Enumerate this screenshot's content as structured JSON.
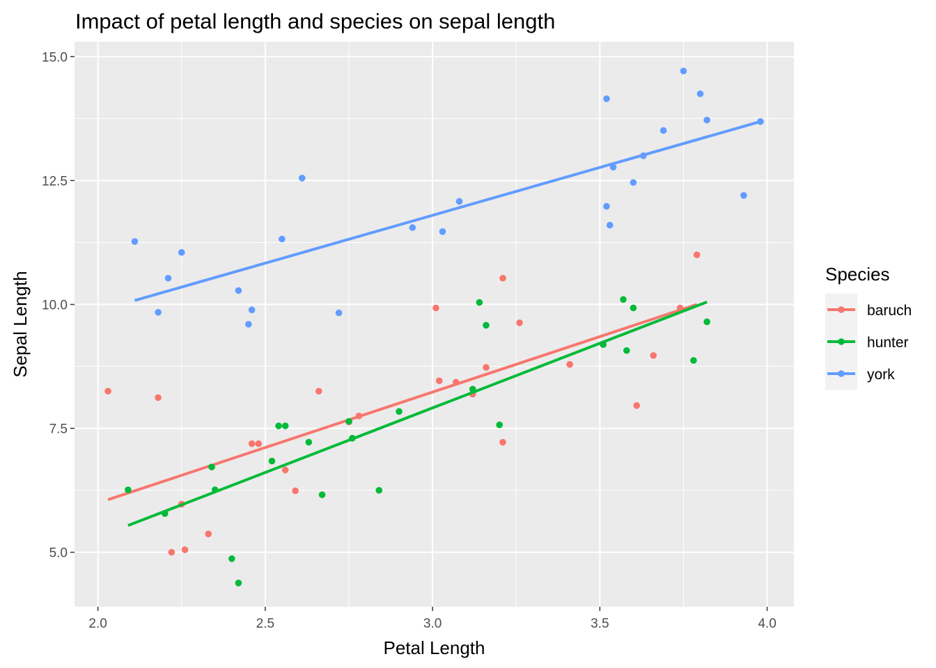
{
  "chart_data": {
    "type": "scatter",
    "title": "Impact of petal length and species on sepal length",
    "xlabel": "Petal Length",
    "ylabel": "Sepal Length",
    "xlim": [
      1.93,
      4.08
    ],
    "ylim": [
      3.9,
      15.3
    ],
    "x_ticks": [
      2.0,
      2.5,
      3.0,
      3.5,
      4.0
    ],
    "x_tick_labels": [
      "2.0",
      "2.5",
      "3.0",
      "3.5",
      "4.0"
    ],
    "y_ticks": [
      5.0,
      7.5,
      10.0,
      12.5,
      15.0
    ],
    "y_tick_labels": [
      "5.0",
      "7.5",
      "10.0",
      "12.5",
      "15.0"
    ],
    "grid": true,
    "legend": {
      "title": "Species",
      "placement": "right"
    },
    "series": [
      {
        "name": "baruch",
        "color": "#F8766D",
        "points": [
          [
            2.03,
            8.25
          ],
          [
            2.18,
            8.12
          ],
          [
            2.22,
            5.0
          ],
          [
            2.25,
            5.97
          ],
          [
            2.26,
            5.05
          ],
          [
            2.33,
            5.37
          ],
          [
            2.34,
            6.72
          ],
          [
            2.46,
            7.19
          ],
          [
            2.48,
            7.19
          ],
          [
            2.56,
            6.66
          ],
          [
            2.59,
            6.24
          ],
          [
            2.66,
            8.25
          ],
          [
            2.75,
            7.63
          ],
          [
            2.78,
            7.75
          ],
          [
            3.01,
            9.93
          ],
          [
            3.02,
            8.46
          ],
          [
            3.07,
            8.43
          ],
          [
            3.12,
            8.19
          ],
          [
            3.16,
            8.73
          ],
          [
            3.21,
            10.53
          ],
          [
            3.21,
            7.22
          ],
          [
            3.26,
            9.63
          ],
          [
            3.41,
            8.79
          ],
          [
            3.61,
            7.96
          ],
          [
            3.66,
            8.97
          ],
          [
            3.74,
            9.93
          ],
          [
            3.79,
            11.0
          ]
        ],
        "fit": [
          [
            2.03,
            6.06
          ],
          [
            3.79,
            10.0
          ]
        ]
      },
      {
        "name": "hunter",
        "color": "#00BA38",
        "points": [
          [
            2.09,
            6.26
          ],
          [
            2.2,
            5.78
          ],
          [
            2.34,
            6.72
          ],
          [
            2.35,
            6.26
          ],
          [
            2.4,
            4.87
          ],
          [
            2.42,
            4.38
          ],
          [
            2.52,
            6.84
          ],
          [
            2.54,
            7.55
          ],
          [
            2.56,
            7.55
          ],
          [
            2.63,
            7.22
          ],
          [
            2.67,
            6.16
          ],
          [
            2.75,
            7.64
          ],
          [
            2.76,
            7.3
          ],
          [
            2.84,
            6.25
          ],
          [
            2.9,
            7.84
          ],
          [
            3.12,
            8.29
          ],
          [
            3.14,
            10.04
          ],
          [
            3.16,
            9.58
          ],
          [
            3.2,
            7.57
          ],
          [
            3.51,
            9.19
          ],
          [
            3.57,
            10.1
          ],
          [
            3.58,
            9.07
          ],
          [
            3.6,
            9.93
          ],
          [
            3.78,
            8.87
          ],
          [
            3.82,
            9.65
          ]
        ],
        "fit": [
          [
            2.09,
            5.54
          ],
          [
            3.82,
            10.05
          ]
        ]
      },
      {
        "name": "york",
        "color": "#619CFF",
        "points": [
          [
            2.11,
            11.27
          ],
          [
            2.18,
            9.84
          ],
          [
            2.21,
            10.53
          ],
          [
            2.25,
            11.05
          ],
          [
            2.42,
            10.28
          ],
          [
            2.45,
            9.6
          ],
          [
            2.46,
            9.89
          ],
          [
            2.55,
            11.32
          ],
          [
            2.61,
            12.55
          ],
          [
            2.72,
            9.83
          ],
          [
            2.94,
            11.55
          ],
          [
            3.03,
            11.47
          ],
          [
            3.08,
            12.08
          ],
          [
            3.52,
            14.15
          ],
          [
            3.52,
            11.98
          ],
          [
            3.53,
            11.6
          ],
          [
            3.54,
            12.77
          ],
          [
            3.6,
            12.46
          ],
          [
            3.63,
            13.0
          ],
          [
            3.69,
            13.51
          ],
          [
            3.75,
            14.71
          ],
          [
            3.8,
            14.25
          ],
          [
            3.82,
            13.72
          ],
          [
            3.93,
            12.2
          ],
          [
            3.98,
            13.69
          ]
        ],
        "fit": [
          [
            2.11,
            10.08
          ],
          [
            3.98,
            13.69
          ]
        ]
      }
    ]
  }
}
